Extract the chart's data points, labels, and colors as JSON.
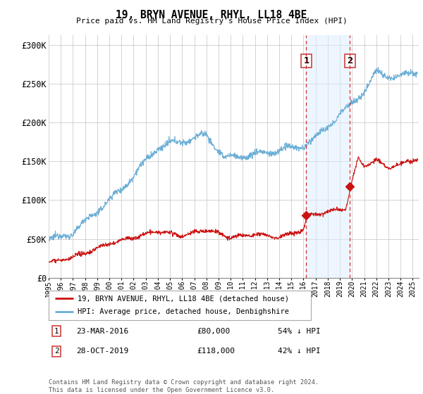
{
  "title": "19, BRYN AVENUE, RHYL, LL18 4BE",
  "subtitle": "Price paid vs. HM Land Registry's House Price Index (HPI)",
  "ylabel_ticks": [
    "£0",
    "£50K",
    "£100K",
    "£150K",
    "£200K",
    "£250K",
    "£300K"
  ],
  "ytick_values": [
    0,
    50000,
    100000,
    150000,
    200000,
    250000,
    300000
  ],
  "ylim": [
    0,
    312000
  ],
  "xlim_start": 1995.0,
  "xlim_end": 2025.5,
  "hpi_color": "#6baed6",
  "property_color": "#cc1111",
  "sale1_x": 2016.22,
  "sale1_y": 80000,
  "sale2_x": 2019.83,
  "sale2_y": 118000,
  "sale1_label": "1",
  "sale2_label": "2",
  "annotation1_date": "23-MAR-2016",
  "annotation1_price": "£80,000",
  "annotation1_hpi": "54% ↓ HPI",
  "annotation2_date": "28-OCT-2019",
  "annotation2_price": "£118,000",
  "annotation2_hpi": "42% ↓ HPI",
  "legend_property": "19, BRYN AVENUE, RHYL, LL18 4BE (detached house)",
  "legend_hpi": "HPI: Average price, detached house, Denbighshire",
  "footnote": "Contains HM Land Registry data © Crown copyright and database right 2024.\nThis data is licensed under the Open Government Licence v3.0.",
  "background_color": "#ffffff",
  "grid_color": "#cccccc",
  "highlight_color": "#ddeeff",
  "highlight_alpha": 0.5
}
